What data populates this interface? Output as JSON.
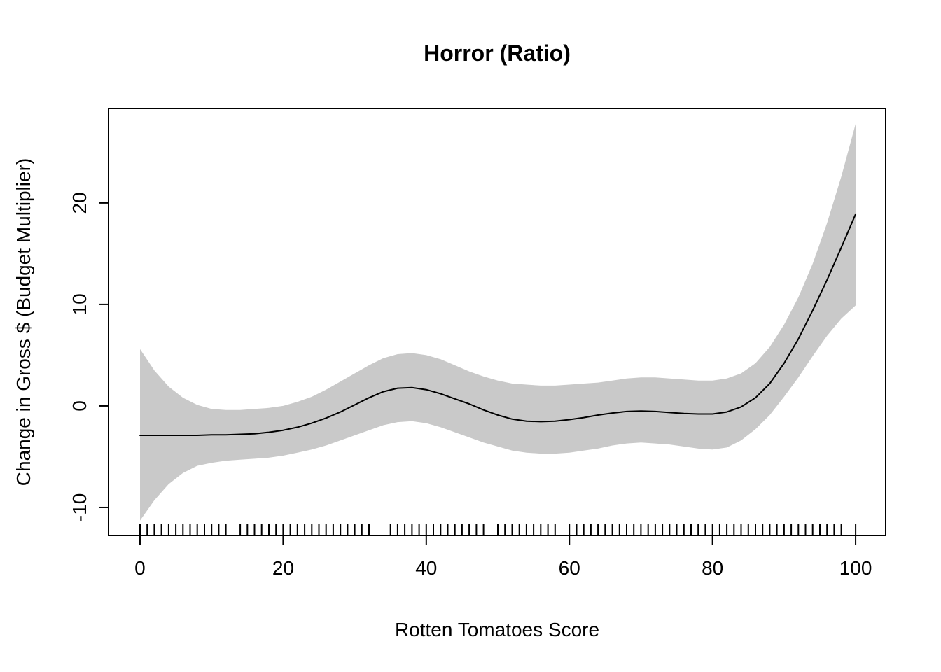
{
  "chart_data": {
    "type": "line",
    "title": "Horror (Ratio)",
    "xlabel": "Rotten Tomatoes Score",
    "ylabel": "Change in Gross $ (Budget Multiplier)",
    "legend": "none",
    "grid": false,
    "xlim": [
      -4.4,
      104.2
    ],
    "ylim": [
      -12.76,
      29.3
    ],
    "x_ticks": [
      0,
      20,
      40,
      60,
      80,
      100
    ],
    "y_ticks": [
      -10,
      0,
      10,
      20
    ],
    "line_color": "#000000",
    "band_color": "#c9c9c9",
    "axis_color": "#000000",
    "x": [
      0,
      2,
      4,
      6,
      8,
      10,
      12,
      14,
      16,
      18,
      20,
      22,
      24,
      26,
      28,
      30,
      32,
      34,
      36,
      38,
      40,
      42,
      44,
      46,
      48,
      50,
      52,
      54,
      56,
      58,
      60,
      62,
      64,
      66,
      68,
      70,
      72,
      74,
      76,
      78,
      80,
      82,
      84,
      86,
      88,
      90,
      92,
      94,
      96,
      98,
      100
    ],
    "fit": [
      -2.9,
      -2.9,
      -2.9,
      -2.9,
      -2.9,
      -2.85,
      -2.85,
      -2.8,
      -2.75,
      -2.6,
      -2.4,
      -2.1,
      -1.7,
      -1.2,
      -0.6,
      0.1,
      0.8,
      1.4,
      1.75,
      1.8,
      1.6,
      1.2,
      0.7,
      0.2,
      -0.4,
      -0.9,
      -1.3,
      -1.5,
      -1.55,
      -1.5,
      -1.35,
      -1.15,
      -0.9,
      -0.7,
      -0.55,
      -0.5,
      -0.55,
      -0.65,
      -0.75,
      -0.8,
      -0.8,
      -0.6,
      -0.1,
      0.8,
      2.2,
      4.2,
      6.6,
      9.4,
      12.4,
      15.6,
      18.9
    ],
    "upper": [
      5.6,
      3.5,
      1.9,
      0.8,
      0.1,
      -0.3,
      -0.4,
      -0.4,
      -0.3,
      -0.2,
      0.0,
      0.4,
      0.9,
      1.6,
      2.4,
      3.2,
      4.0,
      4.7,
      5.1,
      5.2,
      5.0,
      4.6,
      4.0,
      3.4,
      2.9,
      2.5,
      2.2,
      2.1,
      2.0,
      2.0,
      2.1,
      2.2,
      2.3,
      2.5,
      2.7,
      2.8,
      2.8,
      2.7,
      2.6,
      2.5,
      2.5,
      2.7,
      3.2,
      4.2,
      5.8,
      8.0,
      10.7,
      14.0,
      18.0,
      22.6,
      27.8
    ],
    "lower": [
      -11.3,
      -9.3,
      -7.7,
      -6.6,
      -5.9,
      -5.6,
      -5.4,
      -5.3,
      -5.2,
      -5.1,
      -4.9,
      -4.6,
      -4.3,
      -3.9,
      -3.4,
      -2.9,
      -2.4,
      -1.9,
      -1.6,
      -1.5,
      -1.7,
      -2.1,
      -2.6,
      -3.1,
      -3.6,
      -4.0,
      -4.4,
      -4.6,
      -4.7,
      -4.7,
      -4.6,
      -4.4,
      -4.2,
      -3.9,
      -3.7,
      -3.6,
      -3.7,
      -3.8,
      -4.0,
      -4.2,
      -4.3,
      -4.1,
      -3.4,
      -2.3,
      -0.9,
      0.9,
      2.8,
      4.9,
      6.9,
      8.6,
      9.9
    ],
    "rug_x": [
      0,
      1,
      2,
      3,
      4,
      5,
      6,
      7,
      8,
      9,
      10,
      11,
      12,
      14,
      15,
      16,
      17,
      18,
      19,
      20,
      21,
      22,
      23,
      24,
      25,
      26,
      27,
      28,
      29,
      30,
      31,
      32,
      35,
      36,
      37,
      38,
      39,
      40,
      41,
      42,
      43,
      44,
      45,
      46,
      47,
      48,
      50,
      51,
      52,
      53,
      54,
      55,
      56,
      57,
      58,
      60,
      61,
      62,
      63,
      64,
      65,
      66,
      67,
      68,
      69,
      70,
      71,
      72,
      73,
      74,
      75,
      76,
      77,
      78,
      79,
      80,
      81,
      82,
      83,
      84,
      85,
      86,
      87,
      88,
      89,
      90,
      91,
      92,
      93,
      94,
      95,
      96,
      97,
      98,
      100
    ]
  }
}
